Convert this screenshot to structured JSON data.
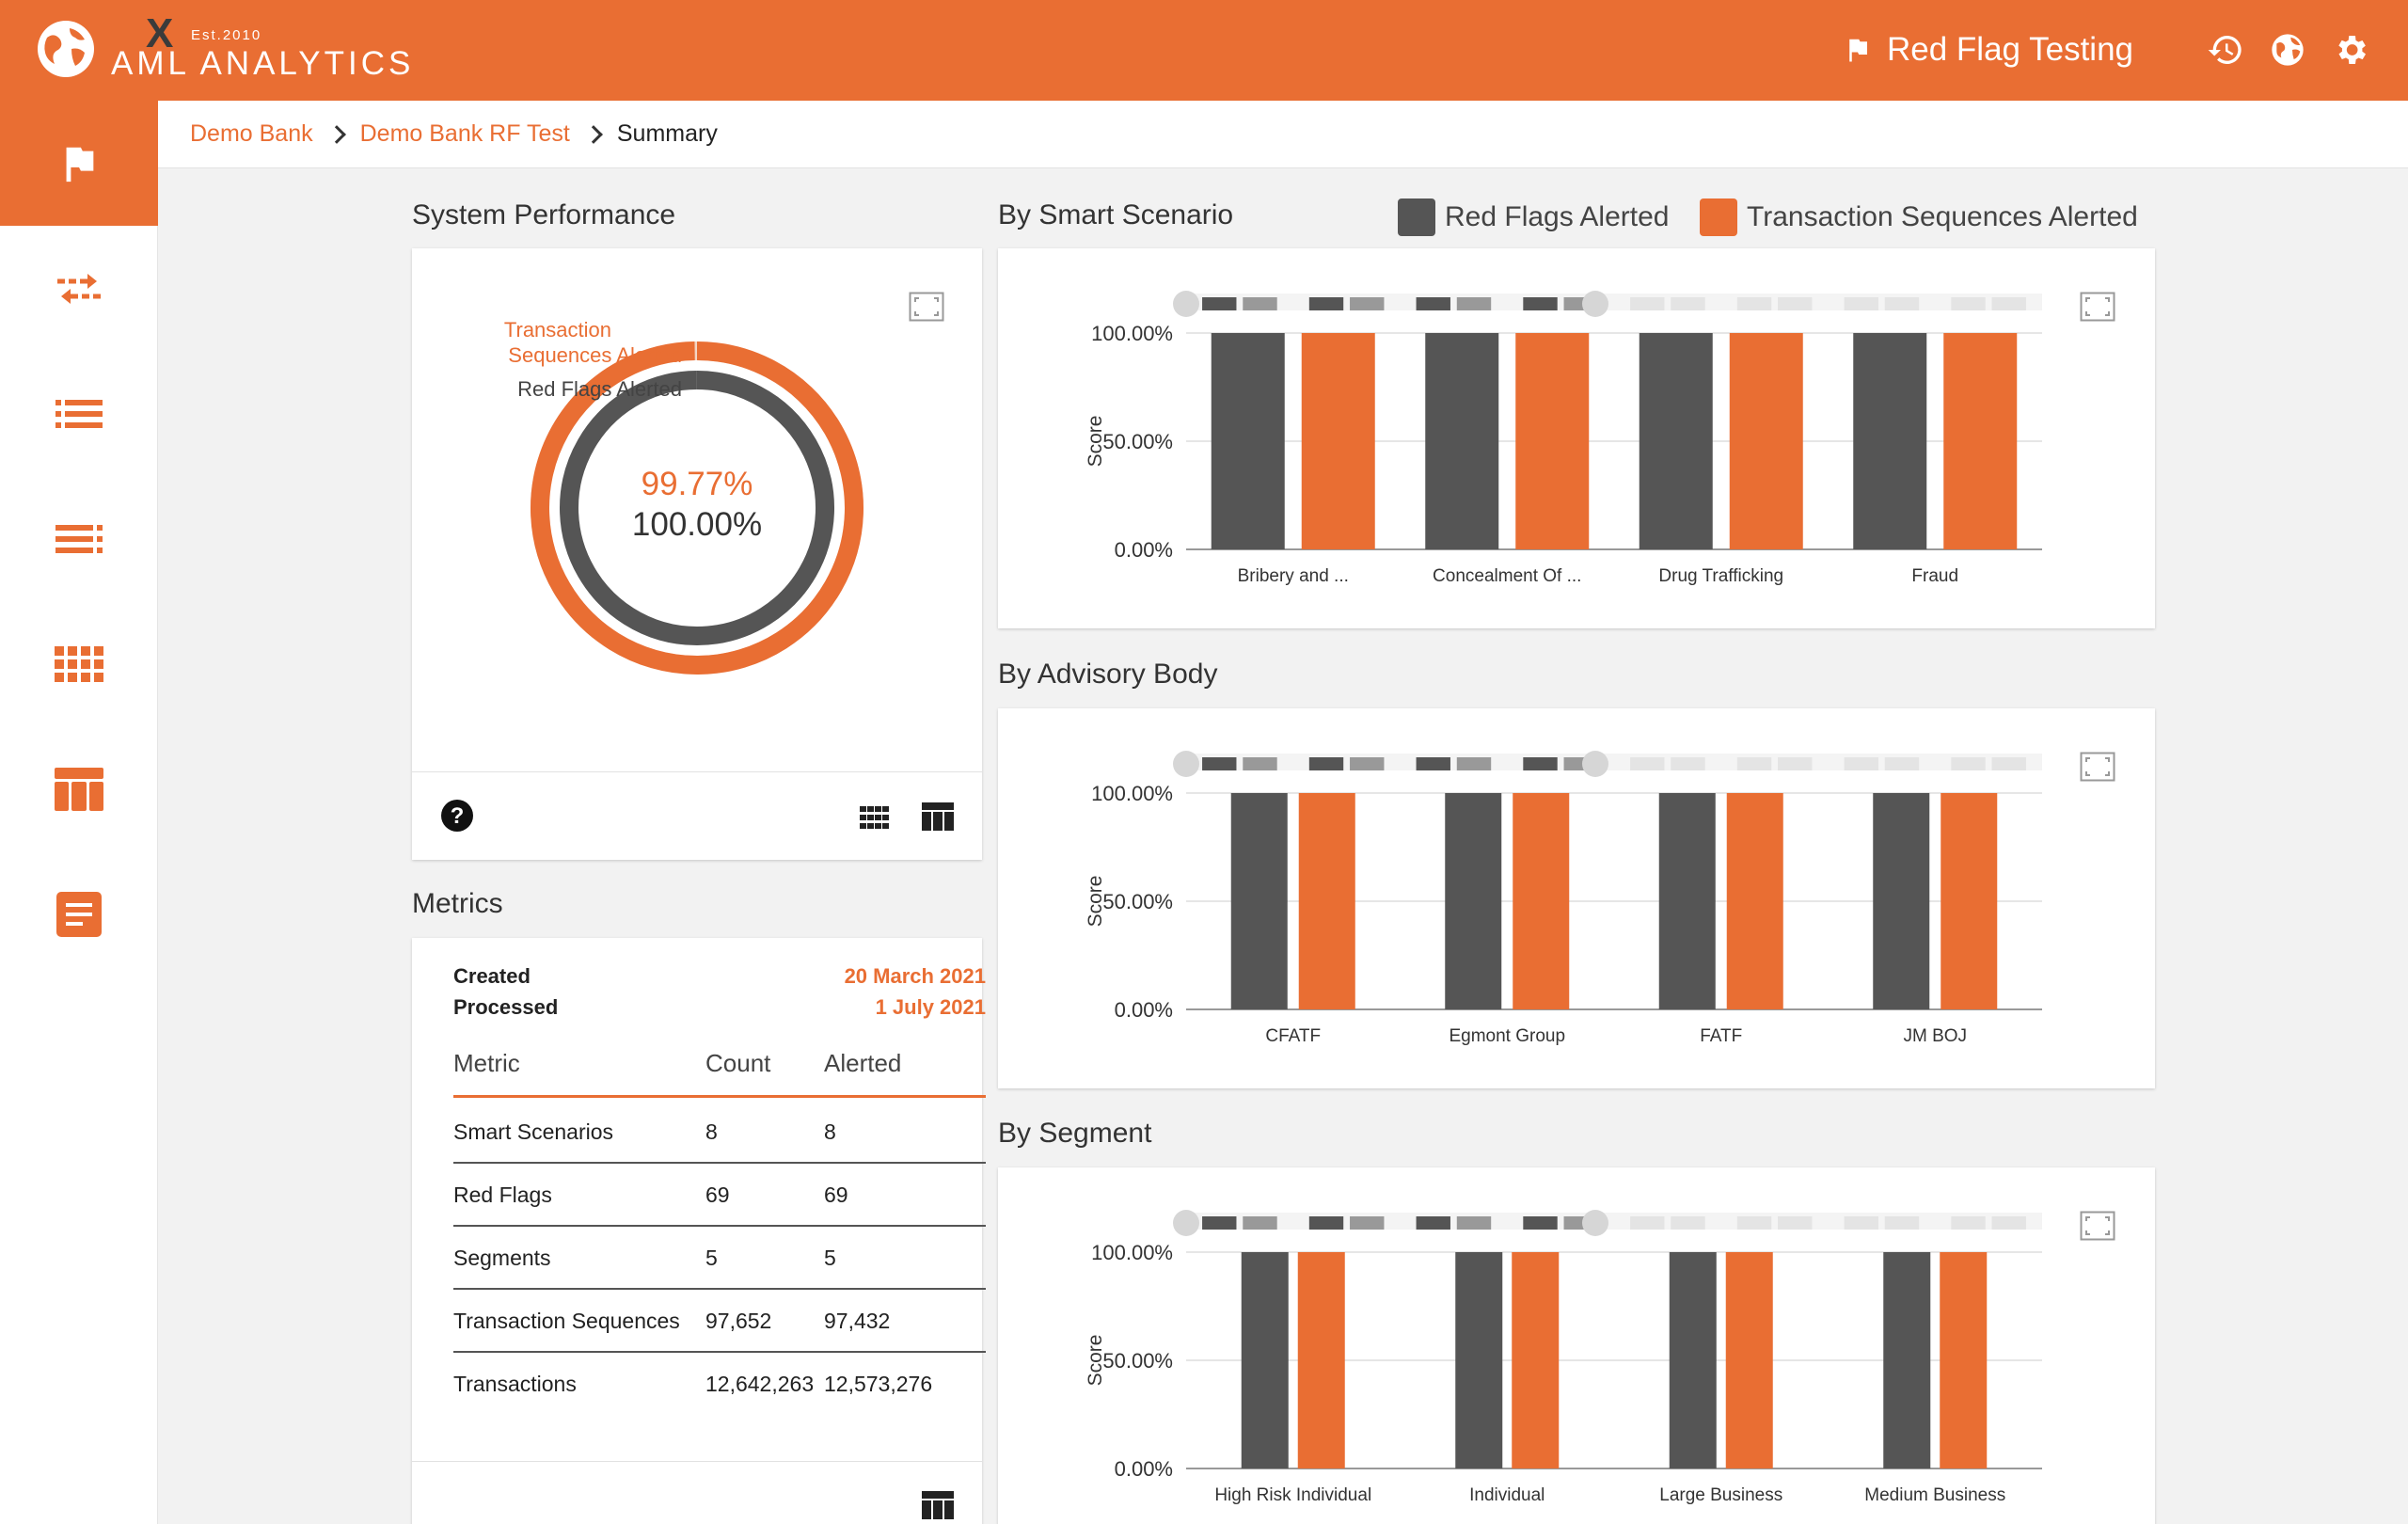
{
  "app": {
    "logo_est": "Est.2010",
    "logo_x": "X",
    "logo_text": "AML ANALYTICS",
    "title": "Red Flag Testing"
  },
  "colors": {
    "accent": "#e96e33",
    "dark": "#555555"
  },
  "topbar_icons": [
    "history-icon",
    "globe-icon",
    "gear-icon"
  ],
  "sidebar": {
    "items": [
      {
        "icon": "flag-icon",
        "active": true
      },
      {
        "icon": "transfer-arrows-icon",
        "active": false
      },
      {
        "icon": "list-icon",
        "active": false
      },
      {
        "icon": "list-detail-icon",
        "active": false
      },
      {
        "icon": "grid-icon",
        "active": false
      },
      {
        "icon": "table-icon",
        "active": false
      },
      {
        "icon": "document-icon",
        "active": false
      }
    ]
  },
  "breadcrumb": [
    "Demo Bank",
    "Demo Bank RF Test",
    "Summary"
  ],
  "system_performance": {
    "title": "System Performance",
    "outer_label": "Transaction\nSequences Alerted",
    "inner_label": "Red Flags Alerted",
    "outer_value": "99.77%",
    "inner_value": "100.00%",
    "outer_fraction": 0.9977,
    "inner_fraction": 1.0
  },
  "metrics": {
    "title": "Metrics",
    "created_label": "Created",
    "created_value": "20 March 2021",
    "processed_label": "Processed",
    "processed_value": "1 July 2021",
    "headers": [
      "Metric",
      "Count",
      "Alerted"
    ],
    "rows": [
      [
        "Smart Scenarios",
        "8",
        "8"
      ],
      [
        "Red Flags",
        "69",
        "69"
      ],
      [
        "Segments",
        "5",
        "5"
      ],
      [
        "Transaction Sequences",
        "97,652",
        "97,432"
      ],
      [
        "Transactions",
        "12,642,263",
        "12,573,276"
      ]
    ]
  },
  "legend": {
    "red_flags": "Red Flags Alerted",
    "sequences": "Transaction Sequences Alerted"
  },
  "chart_data": [
    {
      "type": "bar",
      "title": "By Smart Scenario",
      "ylabel": "Score",
      "yticks": [
        "100.00%",
        "50.00%",
        "0.00%"
      ],
      "ylim": [
        0,
        100
      ],
      "categories": [
        "Bribery and ...",
        "Concealment Of ...",
        "Drug Trafficking",
        "Fraud"
      ],
      "series": [
        {
          "name": "Red Flags Alerted",
          "values": [
            100,
            100,
            100,
            100
          ]
        },
        {
          "name": "Transaction Sequences Alerted",
          "values": [
            100,
            100,
            100,
            100
          ]
        }
      ]
    },
    {
      "type": "bar",
      "title": "By Advisory Body",
      "ylabel": "Score",
      "yticks": [
        "100.00%",
        "50.00%",
        "0.00%"
      ],
      "ylim": [
        0,
        100
      ],
      "categories": [
        "CFATF",
        "Egmont Group",
        "FATF",
        "JM BOJ"
      ],
      "series": [
        {
          "name": "Red Flags Alerted",
          "values": [
            100,
            100,
            100,
            100
          ]
        },
        {
          "name": "Transaction Sequences Alerted",
          "values": [
            100,
            100,
            100,
            100
          ]
        }
      ]
    },
    {
      "type": "bar",
      "title": "By Segment",
      "ylabel": "Score",
      "yticks": [
        "100.00%",
        "50.00%",
        "0.00%"
      ],
      "ylim": [
        0,
        100
      ],
      "categories": [
        "High Risk Individual",
        "Individual",
        "Large Business",
        "Medium Business"
      ],
      "series": [
        {
          "name": "Red Flags Alerted",
          "values": [
            100,
            100,
            100,
            100
          ]
        },
        {
          "name": "Transaction Sequences Alerted",
          "values": [
            100,
            100,
            100,
            100
          ]
        }
      ]
    }
  ]
}
